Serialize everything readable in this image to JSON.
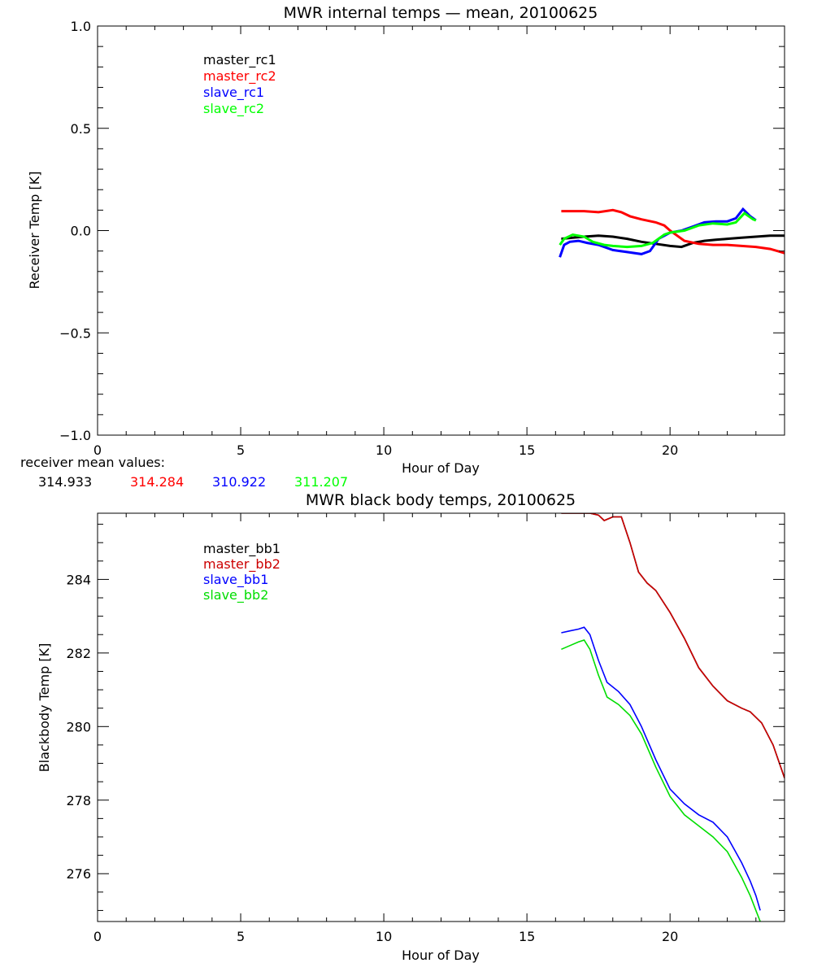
{
  "chart_data": [
    {
      "type": "line",
      "title": "MWR internal temps — mean, 20100625",
      "xlabel": "Hour of Day",
      "ylabel": "Receiver Temp [K]",
      "xlim": [
        0,
        24
      ],
      "ylim": [
        -1.0,
        1.0
      ],
      "xticks": [
        0,
        5,
        10,
        15,
        20
      ],
      "xtick_labels": [
        "0",
        "5",
        "10",
        "15",
        "20"
      ],
      "yticks": [
        -1.0,
        -0.5,
        0.0,
        0.5,
        1.0
      ],
      "ytick_labels": [
        "−1.0",
        "−0.5",
        "0.0",
        "0.5",
        "1.0"
      ],
      "legend_position": "top-left",
      "series": [
        {
          "name": "master_rc1",
          "color": "#000000",
          "x": [
            16.2,
            16.6,
            17.0,
            17.5,
            18.0,
            18.5,
            19.0,
            19.5,
            20.0,
            20.4,
            20.8,
            21.2,
            21.6,
            22.0,
            22.5,
            23.0,
            23.5,
            24.0
          ],
          "y": [
            -0.04,
            -0.035,
            -0.03,
            -0.025,
            -0.03,
            -0.04,
            -0.055,
            -0.065,
            -0.075,
            -0.08,
            -0.06,
            -0.05,
            -0.045,
            -0.04,
            -0.035,
            -0.03,
            -0.025,
            -0.025
          ]
        },
        {
          "name": "master_rc2",
          "color": "#ff0000",
          "x": [
            16.2,
            17.0,
            17.5,
            18.0,
            18.3,
            18.6,
            19.0,
            19.5,
            19.8,
            20.0,
            20.5,
            21.0,
            21.5,
            22.0,
            22.5,
            23.0,
            23.5,
            24.0
          ],
          "y": [
            0.095,
            0.095,
            0.09,
            0.1,
            0.09,
            0.07,
            0.055,
            0.04,
            0.025,
            0.0,
            -0.05,
            -0.065,
            -0.07,
            -0.07,
            -0.075,
            -0.08,
            -0.09,
            -0.11
          ]
        },
        {
          "name": "slave_rc1",
          "color": "#0000ff",
          "x": [
            16.15,
            16.3,
            16.5,
            16.8,
            17.1,
            17.5,
            18.0,
            18.5,
            19.0,
            19.3,
            19.6,
            20.0,
            20.4,
            20.8,
            21.2,
            21.6,
            22.0,
            22.3,
            22.55,
            22.8,
            23.0
          ],
          "y": [
            -0.13,
            -0.07,
            -0.055,
            -0.05,
            -0.06,
            -0.07,
            -0.095,
            -0.105,
            -0.115,
            -0.1,
            -0.04,
            -0.01,
            0.0,
            0.02,
            0.04,
            0.045,
            0.045,
            0.06,
            0.105,
            0.07,
            0.05
          ]
        },
        {
          "name": "slave_rc2",
          "color": "#00ff00",
          "x": [
            16.15,
            16.3,
            16.6,
            17.0,
            17.3,
            17.7,
            18.0,
            18.5,
            19.0,
            19.4,
            19.8,
            20.0,
            20.5,
            21.0,
            21.5,
            22.0,
            22.3,
            22.6,
            22.9,
            23.0
          ],
          "y": [
            -0.07,
            -0.04,
            -0.02,
            -0.03,
            -0.055,
            -0.07,
            -0.075,
            -0.08,
            -0.075,
            -0.06,
            -0.02,
            -0.01,
            0.0,
            0.025,
            0.035,
            0.03,
            0.04,
            0.085,
            0.055,
            0.05
          ]
        }
      ]
    },
    {
      "type": "line",
      "title": "MWR black body temps, 20100625",
      "xlabel": "Hour of Day",
      "ylabel": "Blackbody Temp [K]",
      "xlim": [
        0,
        24
      ],
      "ylim": [
        274.7,
        285.8
      ],
      "xticks": [
        0,
        5,
        10,
        15,
        20
      ],
      "xtick_labels": [
        "0",
        "5",
        "10",
        "15",
        "20"
      ],
      "yticks": [
        276,
        278,
        280,
        282,
        284
      ],
      "ytick_labels": [
        "276",
        "278",
        "280",
        "282",
        "284"
      ],
      "legend_position": "top-left",
      "series": [
        {
          "name": "master_bb1",
          "color": "#000000",
          "x": [
            16.2,
            17.2,
            17.5,
            17.7,
            18.0,
            18.3,
            18.6,
            18.9,
            19.2,
            19.5,
            20.0,
            20.5,
            21.0,
            21.5,
            22.0,
            22.5,
            22.8,
            23.2,
            23.6,
            24.0
          ],
          "y": [
            285.8,
            285.8,
            285.75,
            285.6,
            285.7,
            285.7,
            285.0,
            284.2,
            283.9,
            283.7,
            283.1,
            282.4,
            281.6,
            281.1,
            280.7,
            280.5,
            280.4,
            280.1,
            279.5,
            278.6
          ]
        },
        {
          "name": "master_bb2",
          "color": "#cc0000",
          "x": [
            16.2,
            17.2,
            17.5,
            17.7,
            18.0,
            18.3,
            18.6,
            18.9,
            19.2,
            19.5,
            20.0,
            20.5,
            21.0,
            21.5,
            22.0,
            22.5,
            22.8,
            23.2,
            23.6,
            24.0
          ],
          "y": [
            285.8,
            285.8,
            285.75,
            285.6,
            285.7,
            285.7,
            285.0,
            284.2,
            283.9,
            283.7,
            283.1,
            282.4,
            281.6,
            281.1,
            280.7,
            280.5,
            280.4,
            280.1,
            279.5,
            278.6
          ]
        },
        {
          "name": "slave_bb1",
          "color": "#0000ff",
          "x": [
            16.2,
            16.5,
            16.8,
            17.0,
            17.2,
            17.5,
            17.8,
            18.2,
            18.6,
            19.0,
            19.5,
            20.0,
            20.5,
            21.0,
            21.5,
            22.0,
            22.5,
            22.8,
            23.0,
            23.15
          ],
          "y": [
            282.55,
            282.6,
            282.65,
            282.7,
            282.5,
            281.8,
            281.2,
            280.95,
            280.6,
            280.0,
            279.1,
            278.3,
            277.9,
            277.6,
            277.4,
            277.0,
            276.3,
            275.8,
            275.4,
            275.0
          ]
        },
        {
          "name": "slave_bb2",
          "color": "#00dd00",
          "x": [
            16.2,
            16.5,
            16.8,
            17.0,
            17.2,
            17.5,
            17.8,
            18.2,
            18.6,
            19.0,
            19.5,
            20.0,
            20.5,
            21.0,
            21.5,
            22.0,
            22.5,
            22.8,
            23.0,
            23.15
          ],
          "y": [
            282.1,
            282.2,
            282.3,
            282.35,
            282.1,
            281.4,
            280.8,
            280.6,
            280.3,
            279.8,
            278.9,
            278.1,
            277.6,
            277.3,
            277.0,
            276.6,
            275.9,
            275.4,
            275.0,
            274.7
          ]
        }
      ]
    }
  ],
  "receiver_mean": {
    "label": "receiver mean values:",
    "values": [
      {
        "text": "314.933",
        "color": "#000000"
      },
      {
        "text": "314.284",
        "color": "#ff0000"
      },
      {
        "text": "310.922",
        "color": "#0000ff"
      },
      {
        "text": "311.207",
        "color": "#00ff00"
      }
    ]
  }
}
